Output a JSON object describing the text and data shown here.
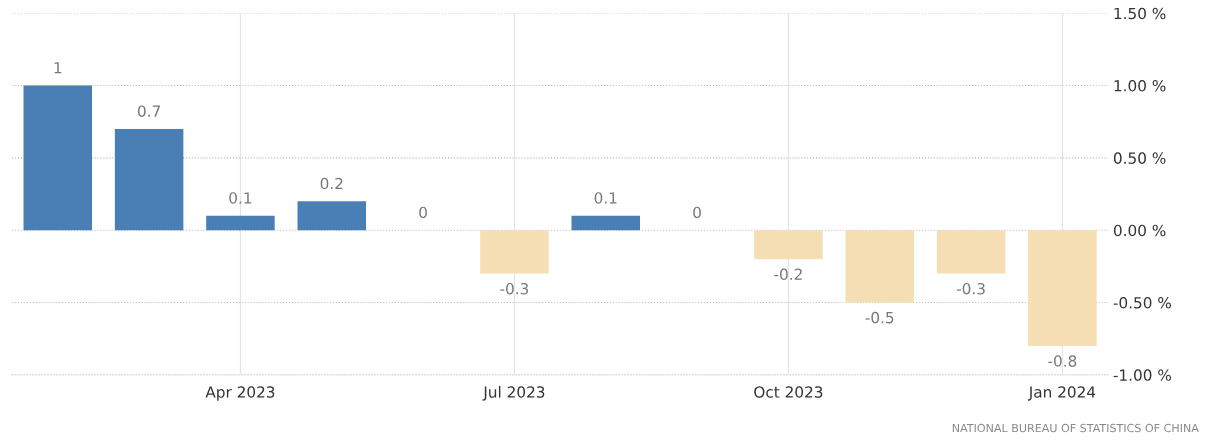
{
  "chart_data": {
    "type": "bar",
    "categories": [
      null,
      null,
      "Apr 2023",
      null,
      null,
      "Jul 2023",
      null,
      null,
      "Oct 2023",
      null,
      null,
      "Jan 2024"
    ],
    "values": [
      1,
      0.7,
      0.1,
      0.2,
      0,
      -0.3,
      0.1,
      0,
      -0.2,
      -0.5,
      -0.3,
      -0.8
    ],
    "colors": [
      "#4a7fb5",
      "#4a7fb5",
      "#4a7fb5",
      "#4a7fb5",
      "#4a7fb5",
      "#f5deb3",
      "#4a7fb5",
      "#4a7fb5",
      "#f5deb3",
      "#f5deb3",
      "#f5deb3",
      "#f5deb3"
    ],
    "ylim": [
      -1.0,
      1.5
    ],
    "yticks": [
      {
        "value": -1.0,
        "label": "-1.00 %"
      },
      {
        "value": -0.5,
        "label": "-0.50 %"
      },
      {
        "value": 0,
        "label": "0.00 %"
      },
      {
        "value": 0.5,
        "label": "0.50 %"
      },
      {
        "value": 1.0,
        "label": "1.00 %"
      },
      {
        "value": 1.5,
        "label": "1.50 %"
      }
    ],
    "data_labels": true,
    "grid": true,
    "annotations": [
      "NATIONAL BUREAU OF STATISTICS OF CHINA"
    ]
  }
}
